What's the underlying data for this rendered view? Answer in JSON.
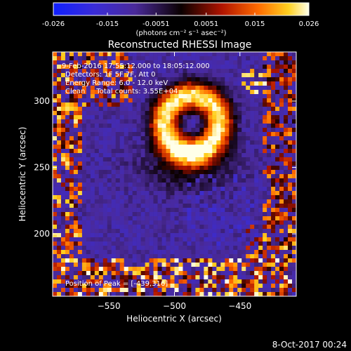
{
  "colorbar": {
    "ticks": [
      "-0.026",
      "-0.015",
      "-0.0051",
      "0.0051",
      "0.015",
      "0.026"
    ],
    "tick_values": [
      -0.026,
      -0.015,
      -0.0051,
      0.0051,
      0.015,
      0.026
    ],
    "units": "(photons cm⁻² s⁻¹ asec⁻²)",
    "range": [
      -0.026,
      0.026
    ]
  },
  "chart_data": {
    "type": "heatmap",
    "title": "Reconstructed RHESSI Image",
    "xlabel": "Heliocentric X (arcsec)",
    "ylabel": "Heliocentric Y (arcsec)",
    "xlim": [
      -593,
      -407
    ],
    "ylim": [
      153,
      337
    ],
    "x_ticks": [
      -550,
      -500,
      -450
    ],
    "y_ticks": [
      200,
      250,
      300
    ],
    "colormap": "blue-purple-red-yellow-white",
    "peak_position": [
      -439,
      316
    ],
    "source": {
      "shape": "ring",
      "center": [
        -487,
        283
      ],
      "radius": 21,
      "width": 11,
      "peak_value": 0.026
    },
    "annotations": [
      "9-Feb-2016 17:55:12.000 to 18:05:12.000",
      "Detectors: 1F 5F 7F, Att 0",
      "Energy Range: 6.0 - 12.0 keV",
      "Clean     Total counts: 3.55E+04",
      "Position of Peak = [-439,316]"
    ]
  },
  "footer": {
    "timestamp": "8-Oct-2017 00:24"
  },
  "colors": {
    "background": "#000000",
    "text": "#ffffff"
  }
}
